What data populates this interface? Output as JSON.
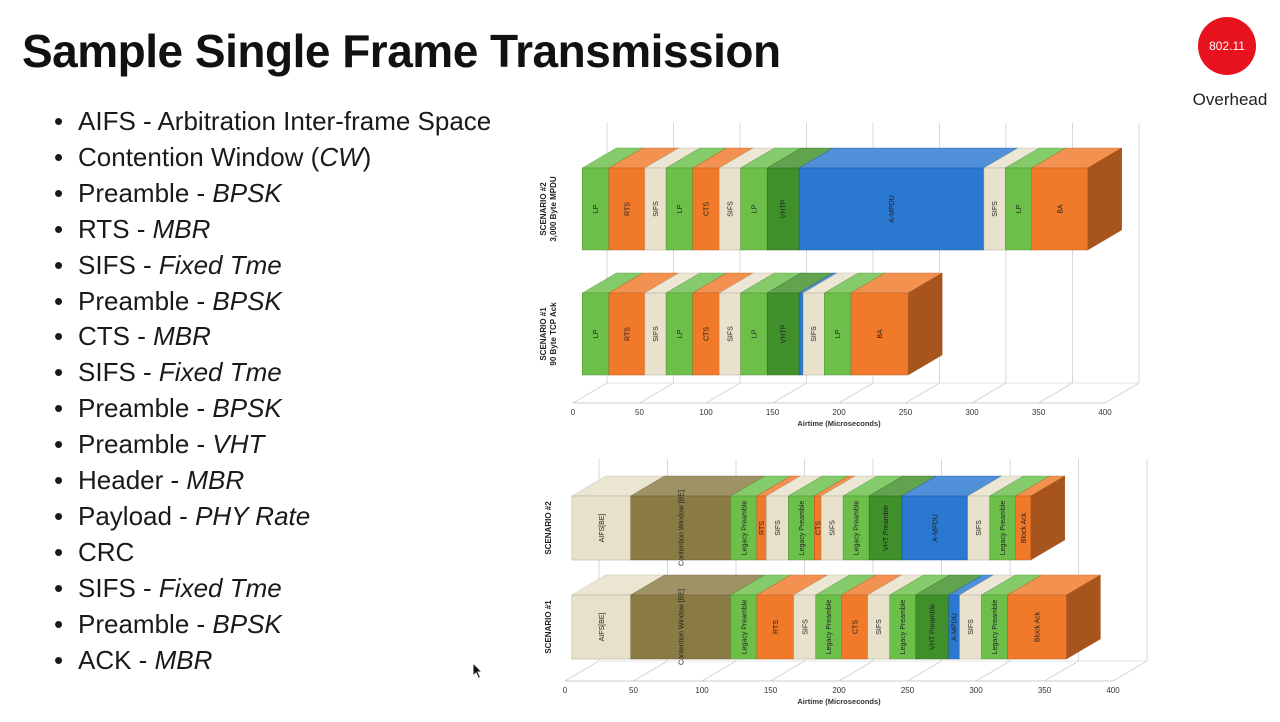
{
  "title": "Sample Single Frame Transmission",
  "badge": {
    "text": "802.11",
    "caption": "Overhead",
    "color": "#e8111e"
  },
  "bullets": [
    {
      "text": "AIFS - Arbitration Inter-frame Space",
      "italic": ""
    },
    {
      "text": "Contention Window (",
      "italic": "CW",
      "after": ")"
    },
    {
      "text": "Preamble - ",
      "italic": "BPSK"
    },
    {
      "text": "RTS - ",
      "italic": "MBR"
    },
    {
      "text": "SIFS - ",
      "italic": "Fixed Tme"
    },
    {
      "text": "Preamble - ",
      "italic": "BPSK"
    },
    {
      "text": "CTS - ",
      "italic": "MBR"
    },
    {
      "text": "SIFS - ",
      "italic": "Fixed Tme"
    },
    {
      "text": "Preamble - ",
      "italic": "BPSK"
    },
    {
      "text": "Preamble - ",
      "italic": "VHT"
    },
    {
      "text": "Header - ",
      "italic": "MBR"
    },
    {
      "text": "Payload - ",
      "italic": "PHY Rate"
    },
    {
      "text": "CRC",
      "italic": ""
    },
    {
      "text": "SIFS - ",
      "italic": "Fixed Tme"
    },
    {
      "text": "Preamble - ",
      "italic": "BPSK"
    },
    {
      "text": "ACK - ",
      "italic": "MBR"
    }
  ],
  "colors": {
    "LP": "#6cc04a",
    "RTS": "#f07a2a",
    "CTS": "#f07a2a",
    "BA": "#f07a2a",
    "Block Ack": "#f07a2a",
    "SIFS": "#e8e2cc",
    "VHTP": "#3f8f2a",
    "VHT Preamble": "#3f8f2a",
    "Legacy Preamble": "#6cc04a",
    "A-MPDU": "#2a78cf",
    "AIFS[BE]": "#e6e1c8",
    "Contention Window [BE]": "#8a7b45"
  },
  "chart_data": [
    {
      "type": "bar",
      "orientation": "horizontal-stacked",
      "xlabel": "Airtime (Microseconds)",
      "xlim": [
        0,
        400
      ],
      "xticks": [
        0,
        50,
        100,
        150,
        200,
        250,
        300,
        350,
        400
      ],
      "rows": [
        {
          "label": [
            "SCENARIO #2",
            "3,000 Byte MPDU"
          ],
          "segments": [
            {
              "name": "LP",
              "start": 7,
              "end": 27
            },
            {
              "name": "RTS",
              "start": 27,
              "end": 54
            },
            {
              "name": "SIFS",
              "start": 54,
              "end": 70
            },
            {
              "name": "LP",
              "start": 70,
              "end": 90
            },
            {
              "name": "CTS",
              "start": 90,
              "end": 110
            },
            {
              "name": "SIFS",
              "start": 110,
              "end": 126
            },
            {
              "name": "LP",
              "start": 126,
              "end": 146
            },
            {
              "name": "VHTP",
              "start": 146,
              "end": 170
            },
            {
              "name": "A-MPDU",
              "start": 170,
              "end": 309
            },
            {
              "name": "SIFS",
              "start": 309,
              "end": 325
            },
            {
              "name": "LP",
              "start": 325,
              "end": 345
            },
            {
              "name": "BA",
              "start": 345,
              "end": 387
            }
          ]
        },
        {
          "label": [
            "SCENARIO #1",
            "90 Byte TCP Ack"
          ],
          "segments": [
            {
              "name": "LP",
              "start": 7,
              "end": 27
            },
            {
              "name": "RTS",
              "start": 27,
              "end": 54
            },
            {
              "name": "SIFS",
              "start": 54,
              "end": 70
            },
            {
              "name": "LP",
              "start": 70,
              "end": 90
            },
            {
              "name": "CTS",
              "start": 90,
              "end": 110
            },
            {
              "name": "SIFS",
              "start": 110,
              "end": 126
            },
            {
              "name": "LP",
              "start": 126,
              "end": 146
            },
            {
              "name": "VHTP",
              "start": 146,
              "end": 170
            },
            {
              "name": "A-MPDU",
              "start": 170,
              "end": 173
            },
            {
              "name": "SIFS",
              "start": 173,
              "end": 189
            },
            {
              "name": "LP",
              "start": 189,
              "end": 209
            },
            {
              "name": "BA",
              "start": 209,
              "end": 252
            }
          ]
        }
      ]
    },
    {
      "type": "bar",
      "orientation": "horizontal-stacked",
      "xlabel": "Airtime (Microseconds)",
      "xlim": [
        0,
        400
      ],
      "xticks": [
        0,
        50,
        100,
        150,
        200,
        250,
        300,
        350,
        400
      ],
      "rows": [
        {
          "label": [
            "SCENARIO #2"
          ],
          "segments": [
            {
              "name": "AIFS[BE]",
              "start": 5,
              "end": 48
            },
            {
              "name": "Contention Window [BE]",
              "start": 48,
              "end": 121
            },
            {
              "name": "Legacy Preamble",
              "start": 121,
              "end": 140
            },
            {
              "name": "RTS",
              "start": 140,
              "end": 147
            },
            {
              "name": "SIFS",
              "start": 147,
              "end": 163
            },
            {
              "name": "Legacy Preamble",
              "start": 163,
              "end": 182
            },
            {
              "name": "CTS",
              "start": 182,
              "end": 187
            },
            {
              "name": "SIFS",
              "start": 187,
              "end": 203
            },
            {
              "name": "Legacy Preamble",
              "start": 203,
              "end": 222
            },
            {
              "name": "VHT Preamble",
              "start": 222,
              "end": 246
            },
            {
              "name": "A-MPDU",
              "start": 246,
              "end": 294
            },
            {
              "name": "SIFS",
              "start": 294,
              "end": 310
            },
            {
              "name": "Legacy Preamble",
              "start": 310,
              "end": 329
            },
            {
              "name": "Block Ack",
              "start": 329,
              "end": 340
            }
          ]
        },
        {
          "label": [
            "SCENARIO #1"
          ],
          "segments": [
            {
              "name": "AIFS[BE]",
              "start": 5,
              "end": 48
            },
            {
              "name": "Contention Window [BE]",
              "start": 48,
              "end": 121
            },
            {
              "name": "Legacy Preamble",
              "start": 121,
              "end": 140
            },
            {
              "name": "RTS",
              "start": 140,
              "end": 167
            },
            {
              "name": "SIFS",
              "start": 167,
              "end": 183
            },
            {
              "name": "Legacy Preamble",
              "start": 183,
              "end": 202
            },
            {
              "name": "CTS",
              "start": 202,
              "end": 221
            },
            {
              "name": "SIFS",
              "start": 221,
              "end": 237
            },
            {
              "name": "Legacy Preamble",
              "start": 237,
              "end": 256
            },
            {
              "name": "VHT Preamble",
              "start": 256,
              "end": 280
            },
            {
              "name": "A-MPDU",
              "start": 280,
              "end": 288
            },
            {
              "name": "SIFS",
              "start": 288,
              "end": 304
            },
            {
              "name": "Legacy Preamble",
              "start": 304,
              "end": 323
            },
            {
              "name": "Block Ack",
              "start": 323,
              "end": 366
            }
          ]
        }
      ]
    }
  ]
}
